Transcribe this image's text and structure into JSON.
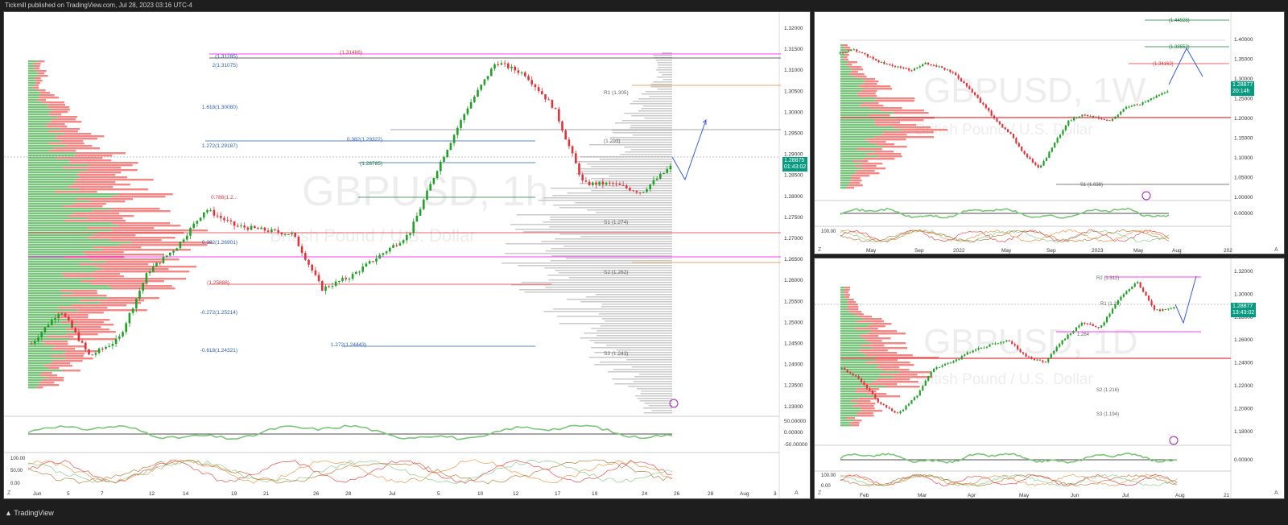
{
  "header": {
    "published_text": "Tickmill published on TradingView.com, Jul 28, 2023 03:16 UTC-4"
  },
  "footer": {
    "logo_text": "TradingView"
  },
  "colors": {
    "up": "#22a02a",
    "down": "#e0343b",
    "bg": "#ffffff",
    "oscillator": "#7cc47a",
    "oscillator_down": "#e0605a"
  },
  "main_chart": {
    "watermark_symbol": "GBPUSD, 1h",
    "watermark_desc": "British Pound / U.S. Dollar",
    "price_scale": [
      "1.32000",
      "1.31500",
      "1.31000",
      "1.30500",
      "1.30000",
      "1.29500",
      "1.29000",
      "1.28500",
      "1.28000",
      "1.27500",
      "1.27000",
      "1.26500",
      "1.26000",
      "1.25500",
      "1.25000",
      "1.24500",
      "1.24000",
      "1.23500",
      "1.23000"
    ],
    "osc_scale": [
      "50.00000",
      "0.00000",
      "-50.00000"
    ],
    "stoch_scale": [
      "100.00",
      "50.00",
      "0.00"
    ],
    "last_price": "1.28875",
    "countdown": "01:43:02",
    "time_axis": [
      "Jun",
      "5",
      "7",
      "12",
      "14",
      "19",
      "21",
      "26",
      "28",
      "Jul",
      "5",
      "10",
      "12",
      "17",
      "19",
      "24",
      "26",
      "28",
      "Aug",
      "3"
    ],
    "fib_labels_left": [
      {
        "text": "(1.31285)",
        "color": "#2b5fb0"
      },
      {
        "text": "2(1.31075)",
        "color": "#2b5fb0"
      },
      {
        "text": "1.618(1.30080)",
        "color": "#2b5fb0"
      },
      {
        "text": "1.272(1.29187)",
        "color": "#2b5fb0"
      },
      {
        "text": "0.786(1.2...",
        "color": "#e0343b"
      },
      {
        "text": "0.382(1.26901)",
        "color": "#2b5fb0"
      },
      {
        "text": "-0.272(1.25214)",
        "color": "#2b5fb0"
      },
      {
        "text": "-0.618(1.24321)",
        "color": "#2b5fb0"
      }
    ],
    "fib_labels_mid": [
      {
        "text": "(1.31406)",
        "color": "#e0343b"
      },
      {
        "text": "0.382(1.29322)",
        "color": "#2b5fb0"
      },
      {
        "text": "(1.28785)",
        "color": "#1a7a3a"
      },
      {
        "text": "(1.25888)",
        "color": "#e0343b"
      },
      {
        "text": "1.272(1.24443)",
        "color": "#2b5fb0"
      }
    ],
    "pivot_labels": [
      "R1 (1.305)",
      "(1.293)",
      "S1 (1.274)",
      "S2 (1.262)",
      "S3 (1.243)"
    ]
  },
  "weekly_chart": {
    "watermark_symbol": "GBPUSD, 1W",
    "watermark_desc": "British Pound / U.S. Dollar",
    "price_scale": [
      "1.40000",
      "1.35000",
      "1.30000",
      "1.25000",
      "1.20000",
      "1.15000",
      "1.10000",
      "1.05000",
      "1.00000"
    ],
    "osc_scale": [
      "0.00000"
    ],
    "stoch_scale": [
      "100.00"
    ],
    "last_price": "1.28877",
    "countdown": "20:14h",
    "time_axis": [
      "May",
      "Sep",
      "2022",
      "May",
      "Sep",
      "2023",
      "May",
      "Aug",
      "202"
    ],
    "levels": [
      {
        "text": "(1.44928)",
        "color": "#1a7a3a"
      },
      {
        "text": "(1.38553)",
        "color": "#1a7a3a"
      },
      {
        "text": "(1.34163)",
        "color": "#e0343b"
      },
      {
        "text": "S1 (1.038)",
        "color": "#555"
      }
    ]
  },
  "daily_chart": {
    "watermark_symbol": "GBPUSD, 1D",
    "watermark_desc": "British Pound / U.S. Dollar",
    "price_scale": [
      "1.32000",
      "1.30000",
      "1.28000",
      "1.26000",
      "1.24000",
      "1.22000",
      "1.20000",
      "1.18000"
    ],
    "osc_scale": [
      "0.00000"
    ],
    "stoch_scale": [
      "100.00",
      "0.00"
    ],
    "last_price": "1.28877",
    "countdown": "13:43:02",
    "time_axis": [
      "Feb",
      "Mar",
      "Apr",
      "May",
      "Jun",
      "Jul",
      "Aug",
      "21"
    ],
    "pivot_labels": [
      "R2 (1.312)",
      "R1 (1.29)",
      "1.264",
      "S2 (1.216)",
      "S3 (1.194)"
    ]
  }
}
